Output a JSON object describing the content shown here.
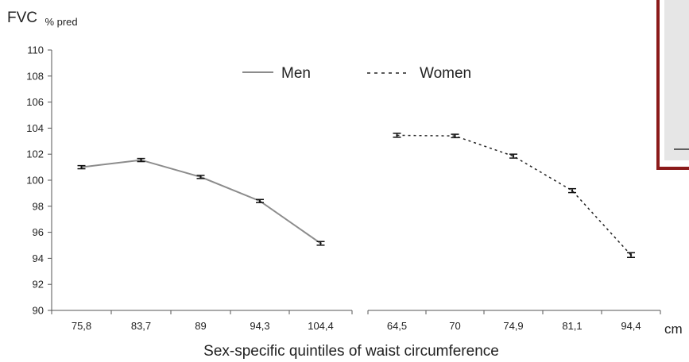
{
  "chart_data": {
    "type": "line",
    "ylabel_main": "FVC",
    "ylabel_sub": "% pred",
    "xlabel": "Sex-specific quintiles of waist circumference",
    "x_unit": "cm",
    "ylim": [
      90,
      110
    ],
    "yticks": [
      90,
      92,
      94,
      96,
      98,
      100,
      102,
      104,
      106,
      108,
      110
    ],
    "grid": false,
    "legend_position": "top-center",
    "series": [
      {
        "name": "Men",
        "line_style": "solid",
        "color": "#8c8c8c",
        "categories": [
          "75,8",
          "83,7",
          "89",
          "94,3",
          "104,4"
        ],
        "values": [
          101.0,
          101.55,
          100.25,
          98.4,
          95.15
        ],
        "errors": [
          0.12,
          0.12,
          0.12,
          0.12,
          0.14
        ]
      },
      {
        "name": "Women",
        "line_style": "dashed",
        "color": "#222222",
        "categories": [
          "64,5",
          "70",
          "74,9",
          "81,1",
          "94,4"
        ],
        "values": [
          103.45,
          103.4,
          101.85,
          99.2,
          94.25
        ],
        "errors": [
          0.15,
          0.13,
          0.15,
          0.15,
          0.18
        ]
      }
    ],
    "inset_border_color": "#8b1a1a"
  }
}
